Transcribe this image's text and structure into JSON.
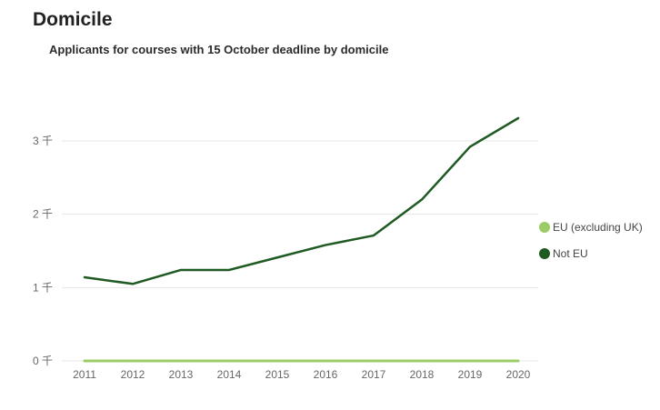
{
  "page": {
    "title": "Domicile"
  },
  "chart_data": {
    "type": "line",
    "title": "Applicants for courses with 15 October deadline by domicile",
    "xlabel": "",
    "ylabel": "",
    "x": [
      "2011",
      "2012",
      "2013",
      "2014",
      "2015",
      "2016",
      "2017",
      "2018",
      "2019",
      "2020"
    ],
    "ylim": [
      0,
      3500
    ],
    "yticks": [
      {
        "value": 0,
        "label": "0 千"
      },
      {
        "value": 1000,
        "label": "1 千"
      },
      {
        "value": 2000,
        "label": "2 千"
      },
      {
        "value": 3000,
        "label": "3 千"
      }
    ],
    "grid": true,
    "legend_position": "right",
    "series": [
      {
        "name": "EU (excluding UK)",
        "color": "#9ccc65",
        "values": [
          0,
          0,
          0,
          0,
          0,
          0,
          0,
          0,
          0,
          0
        ]
      },
      {
        "name": "Not EU",
        "color": "#1f5a22",
        "values": [
          1140,
          1050,
          1240,
          1240,
          1410,
          1580,
          1710,
          2200,
          2920,
          3310
        ]
      }
    ]
  }
}
